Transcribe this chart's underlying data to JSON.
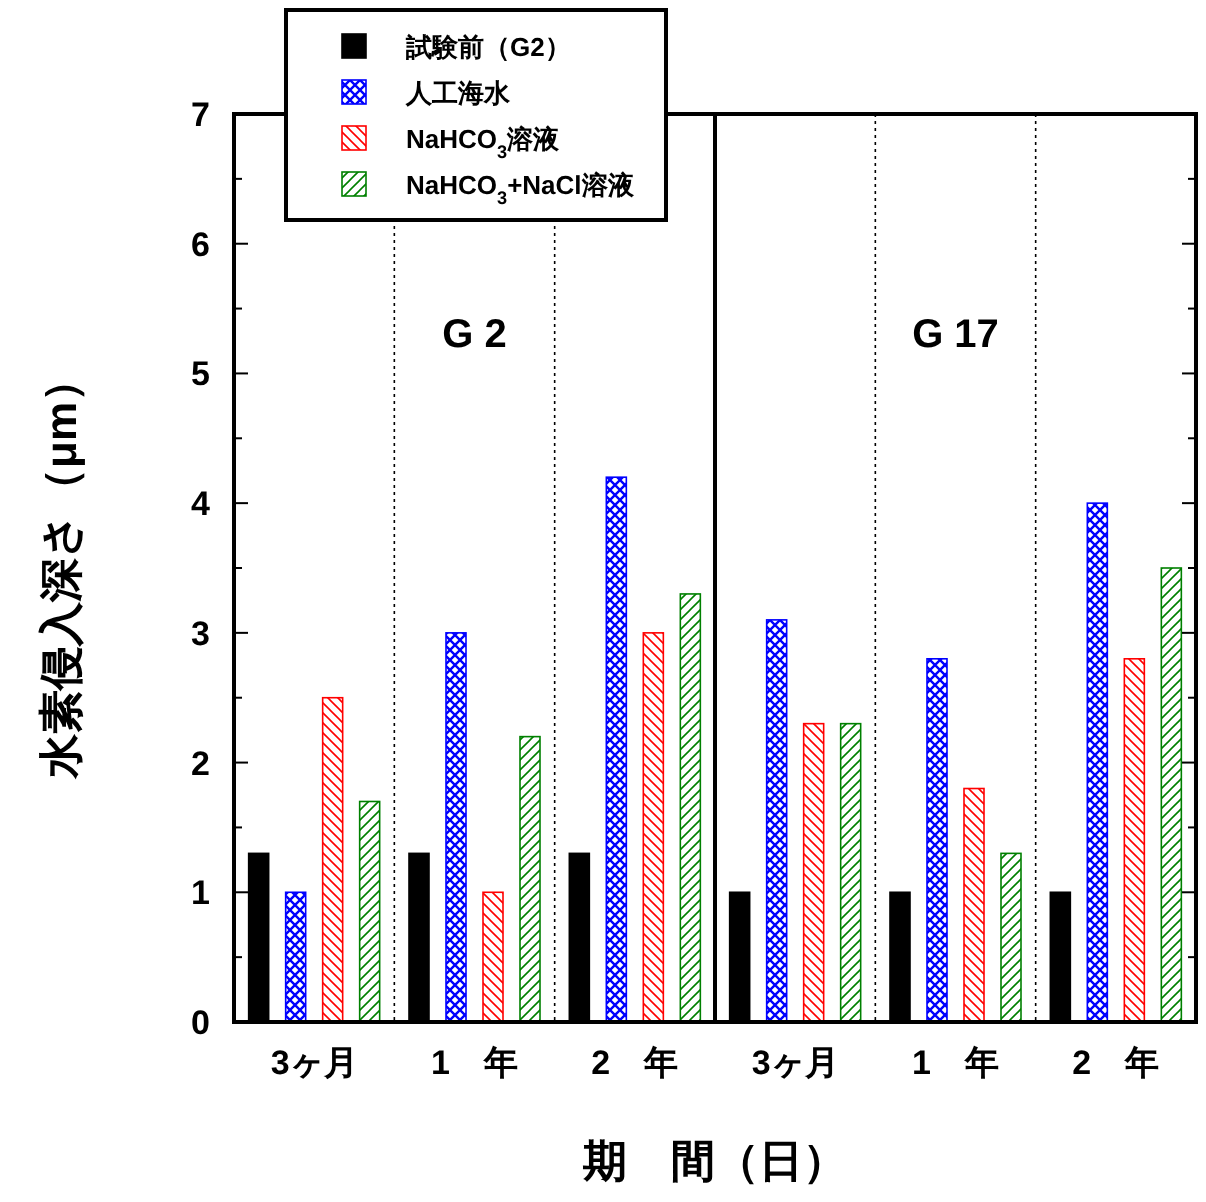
{
  "chart_data": {
    "type": "bar",
    "xlabel": "期　間（日）",
    "ylabel": "水素侵入深さ（μm）",
    "categories": [
      "3ヶ月",
      "1　年",
      "2　年",
      "3ヶ月",
      "1　年",
      "2　年"
    ],
    "series": [
      {
        "name": "試験前（G2）",
        "color": "#000000",
        "values": [
          1.3,
          1.3,
          1.3,
          1.0,
          1.0,
          1.0
        ]
      },
      {
        "name": "人工海水",
        "color": "#0000ff",
        "values": [
          1.0,
          3.0,
          4.2,
          3.1,
          2.8,
          4.0
        ]
      },
      {
        "name": "NaHCO$_{3}$溶液",
        "color": "#ff0000",
        "values": [
          2.5,
          1.0,
          3.0,
          2.3,
          1.8,
          2.8
        ]
      },
      {
        "name": "NaHCO$_{3}$+NaCl溶液",
        "color": "#008000",
        "values": [
          1.7,
          2.2,
          3.3,
          2.3,
          1.3,
          3.5
        ]
      }
    ],
    "ylim": [
      0,
      7
    ],
    "yticks": [
      0,
      {
        "value": 0.5,
        "label": null
      },
      1,
      {
        "value": 1.5,
        "label": null
      },
      2,
      {
        "value": 2.5,
        "label": null
      },
      3,
      {
        "value": 3.5,
        "label": null
      },
      4,
      {
        "value": 4.5,
        "label": null
      },
      5,
      {
        "value": 5.5,
        "label": null
      },
      6,
      {
        "value": 6.5,
        "label": null
      },
      7
    ],
    "annotations": [
      "G 2",
      "G 17"
    ],
    "legend": "top left"
  }
}
